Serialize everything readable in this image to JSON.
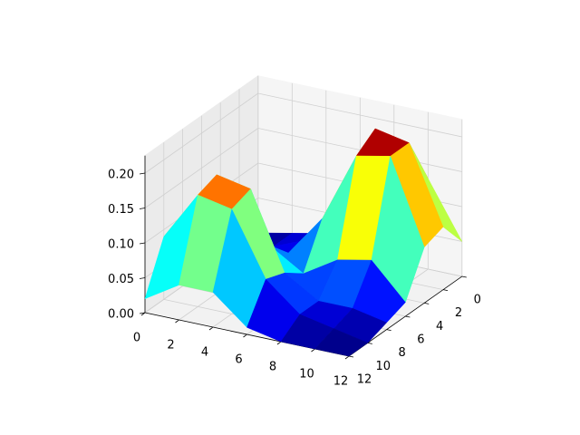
{
  "chart_data": {
    "type": "surface",
    "colormap": "jet",
    "x": [
      0,
      2,
      4,
      6,
      8,
      10,
      12
    ],
    "y": [
      0,
      2,
      4,
      6,
      8,
      10,
      12
    ],
    "z": [
      [
        0.0,
        0.01,
        0.02,
        0.06,
        0.12,
        0.13,
        0.05
      ],
      [
        0.01,
        0.01,
        0.03,
        0.1,
        0.21,
        0.2,
        0.09
      ],
      [
        0.01,
        0.02,
        0.03,
        0.09,
        0.19,
        0.2,
        0.08
      ],
      [
        0.02,
        0.05,
        0.06,
        0.03,
        0.06,
        0.07,
        0.02
      ],
      [
        0.08,
        0.17,
        0.16,
        0.05,
        0.02,
        0.02,
        0.01
      ],
      [
        0.09,
        0.16,
        0.15,
        0.06,
        0.02,
        0.01,
        0.0
      ],
      [
        0.02,
        0.05,
        0.05,
        0.01,
        0.0,
        0.0,
        0.0
      ]
    ],
    "xlim": [
      0,
      12
    ],
    "ylim": [
      0,
      12
    ],
    "zlim": [
      0,
      0.225
    ],
    "xticks": [
      0,
      2,
      4,
      6,
      8,
      10,
      12
    ],
    "yticks": [
      0,
      2,
      4,
      6,
      8,
      10,
      12
    ],
    "zticks": [
      {
        "value": 0,
        "label": "0.00"
      },
      {
        "value": 0.05,
        "label": "0.05"
      },
      {
        "value": 0.1,
        "label": "0.10"
      },
      {
        "value": 0.15,
        "label": "0.15"
      },
      {
        "value": 0.2,
        "label": "0.20"
      }
    ],
    "grid": true
  }
}
